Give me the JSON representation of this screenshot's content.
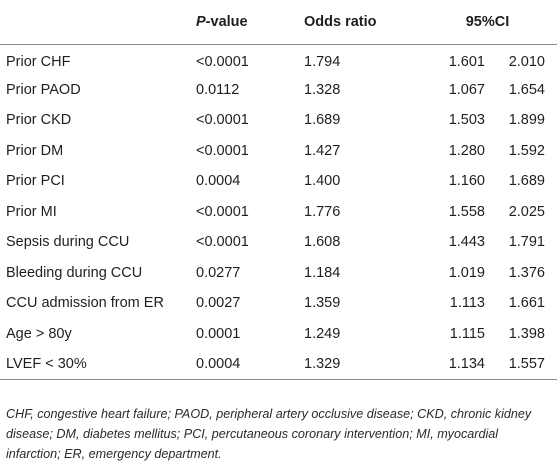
{
  "table": {
    "headers": {
      "label": "",
      "p_prefix": "P",
      "p_suffix": "-value",
      "odds_ratio": "Odds ratio",
      "ci": "95%CI"
    },
    "rows": [
      {
        "label": "Prior CHF",
        "p": "<0.0001",
        "or": "1.794",
        "ci_low": "1.601",
        "ci_high": "2.010"
      },
      {
        "label": "Prior PAOD",
        "p": "0.0112",
        "or": "1.328",
        "ci_low": "1.067",
        "ci_high": "1.654"
      },
      {
        "label": "Prior CKD",
        "p": "<0.0001",
        "or": "1.689",
        "ci_low": "1.503",
        "ci_high": "1.899"
      },
      {
        "label": "Prior DM",
        "p": "<0.0001",
        "or": "1.427",
        "ci_low": "1.280",
        "ci_high": "1.592"
      },
      {
        "label": "Prior PCI",
        "p": "0.0004",
        "or": "1.400",
        "ci_low": "1.160",
        "ci_high": "1.689"
      },
      {
        "label": "Prior MI",
        "p": "<0.0001",
        "or": "1.776",
        "ci_low": "1.558",
        "ci_high": "2.025"
      },
      {
        "label": "Sepsis during CCU",
        "p": "<0.0001",
        "or": "1.608",
        "ci_low": "1.443",
        "ci_high": "1.791"
      },
      {
        "label": "Bleeding during CCU",
        "p": "0.0277",
        "or": "1.184",
        "ci_low": "1.019",
        "ci_high": "1.376"
      },
      {
        "label": "CCU admission from ER",
        "p": "0.0027",
        "or": "1.359",
        "ci_low": "1.113",
        "ci_high": "1.661"
      },
      {
        "label": "Age > 80y",
        "p": "0.0001",
        "or": "1.249",
        "ci_low": "1.115",
        "ci_high": "1.398"
      },
      {
        "label": "LVEF < 30%",
        "p": "0.0004",
        "or": "1.329",
        "ci_low": "1.134",
        "ci_high": "1.557"
      }
    ]
  },
  "footnote": "CHF, congestive heart failure; PAOD, peripheral artery occlusive disease; CKD, chronic kidney disease; DM, diabetes mellitus; PCI, percutaneous coronary intervention; MI, myocardial infarction; ER, emergency department."
}
